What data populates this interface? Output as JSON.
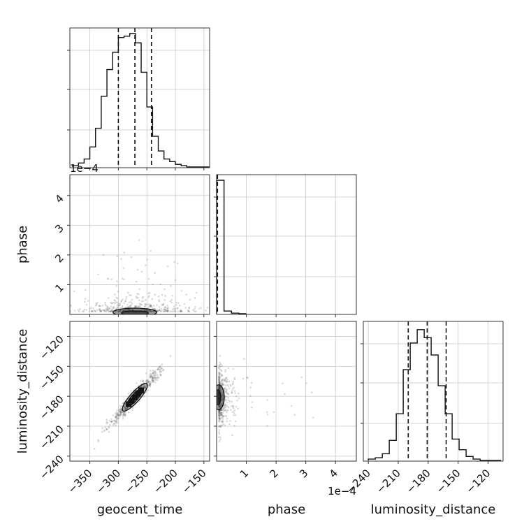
{
  "chart_data": {
    "type": "corner",
    "parameters": [
      {
        "name": "geocent_time",
        "range": [
          -385,
          -140
        ],
        "ticks": [
          -350,
          -300,
          -250,
          -200,
          -150
        ],
        "tick_labels": [
          "−350",
          "−300",
          "−250",
          "−200",
          "−150"
        ],
        "quantiles": [
          -300,
          -271,
          -242
        ],
        "hist_bin_edges": [
          -380,
          -370,
          -360,
          -350,
          -340,
          -330,
          -320,
          -310,
          -300,
          -290,
          -280,
          -270,
          -260,
          -250,
          -240,
          -230,
          -220,
          -210,
          -200,
          -190,
          -180,
          -170,
          -160,
          -150,
          -140
        ],
        "hist_counts": [
          0.01,
          0.03,
          0.06,
          0.15,
          0.29,
          0.53,
          0.73,
          0.86,
          0.97,
          0.98,
          1.0,
          0.93,
          0.71,
          0.45,
          0.23,
          0.12,
          0.06,
          0.04,
          0.02,
          0.01,
          0.0,
          0.0,
          0.0,
          0.0
        ]
      },
      {
        "name": "phase",
        "range": [
          0,
          0.00047
        ],
        "ticks": [
          0.0001,
          0.0002,
          0.0003,
          0.0004
        ],
        "tick_labels": [
          "1",
          "2",
          "3",
          "4"
        ],
        "multiplier_label": "1e−4",
        "quantiles": [
          3e-06
        ],
        "hist_bin_edges": [
          0,
          2.5e-05,
          5e-05,
          7.5e-05,
          0.0001
        ],
        "hist_counts": [
          1.0,
          0.02,
          0.004,
          0.0
        ]
      },
      {
        "name": "luminosity_distance",
        "range": [
          -245,
          -105
        ],
        "ticks": [
          -240,
          -210,
          -180,
          -150,
          -120
        ],
        "tick_labels": [
          "−240",
          "−210",
          "−180",
          "−150",
          "−120"
        ],
        "quantiles": [
          -200,
          -181,
          -162
        ],
        "hist_bin_edges": [
          -240,
          -233,
          -226,
          -219,
          -212,
          -205,
          -198,
          -191,
          -184,
          -177,
          -170,
          -163,
          -156,
          -149,
          -142,
          -135,
          -128,
          -121,
          -114,
          -107
        ],
        "hist_counts": [
          0.01,
          0.02,
          0.05,
          0.15,
          0.35,
          0.68,
          0.88,
          0.98,
          0.92,
          0.79,
          0.56,
          0.35,
          0.16,
          0.08,
          0.03,
          0.01,
          0.0,
          0.0,
          0.0
        ]
      }
    ],
    "pairs": [
      {
        "x": "geocent_time",
        "y": "phase",
        "contour_center": [
          -271,
          1e-05
        ],
        "contour_width": [
          85,
          1e-05
        ]
      },
      {
        "x": "geocent_time",
        "y": "luminosity_distance",
        "correlation": 0.97,
        "contour_center": [
          -271,
          -181
        ],
        "contour_width": [
          42,
          27
        ]
      },
      {
        "x": "phase",
        "y": "luminosity_distance",
        "contour_center": [
          8e-06,
          -181
        ],
        "contour_width": [
          1e-05,
          25
        ]
      }
    ],
    "grid": true
  }
}
